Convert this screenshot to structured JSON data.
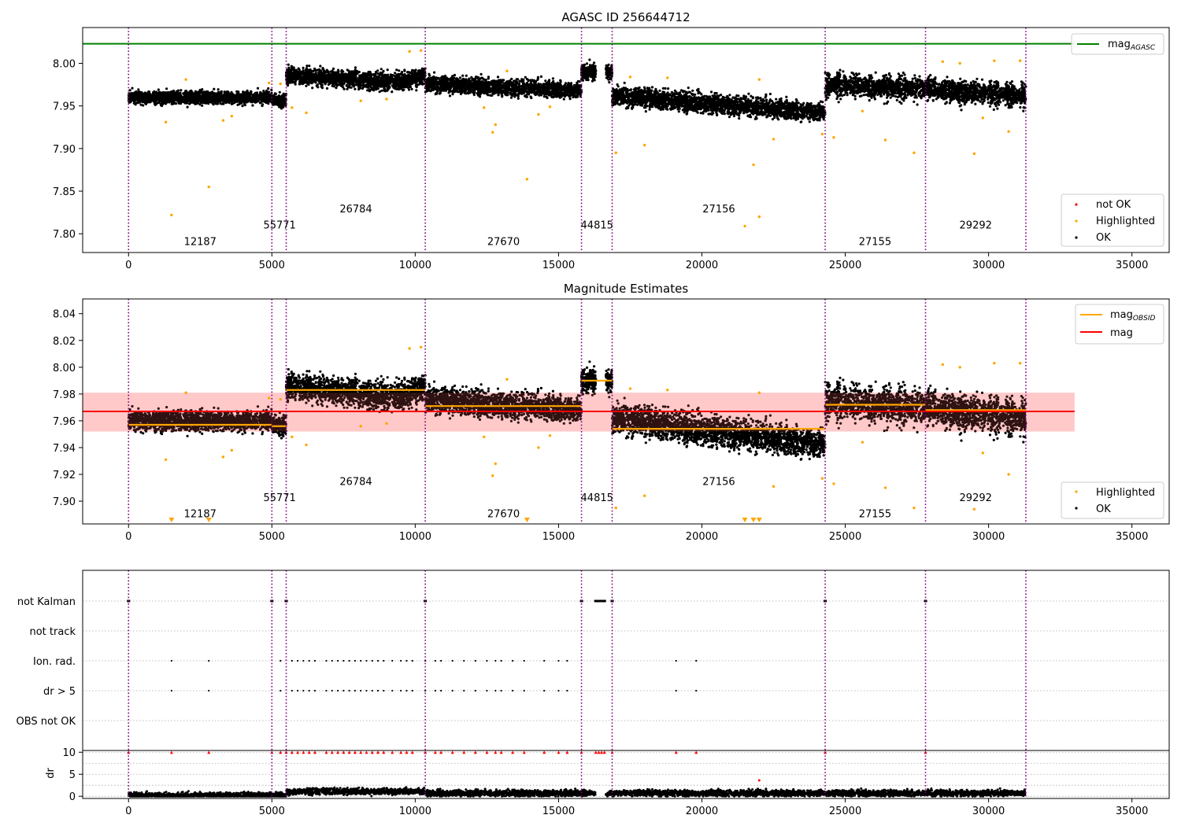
{
  "chart_data": [
    {
      "type": "scatter",
      "title": "AGASC ID 256644712",
      "xlim": [
        -1600,
        36300
      ],
      "ylim": [
        7.778,
        8.042
      ],
      "xticks": [
        0,
        5000,
        10000,
        15000,
        20000,
        25000,
        30000,
        35000
      ],
      "yticks": [
        7.8,
        7.85,
        7.9,
        7.95,
        8.0
      ],
      "vlines": [
        0,
        5000,
        5500,
        10350,
        15800,
        16870,
        24300,
        27800,
        31300
      ],
      "mag_agasc": 8.023,
      "mag_agasc_x_end": 33000,
      "segments": [
        {
          "x0": 0,
          "x1": 5000,
          "y0": 7.96,
          "y1": 7.96,
          "w": 0.0065,
          "gap": [],
          "burst": [],
          "type": "seg"
        },
        {
          "x0": 5000,
          "x1": 5500,
          "y0": 7.957,
          "y1": 7.957,
          "w": 0.0065,
          "gap": [],
          "burst": [],
          "type": "seg"
        },
        {
          "x0": 5500,
          "x1": 10350,
          "y0": 7.986,
          "y1": 7.976,
          "w": 0.009,
          "gap": [],
          "burst": [
            [
              9400,
              10350,
              0.02
            ]
          ],
          "type": "seg"
        },
        {
          "x0": 10350,
          "x1": 15800,
          "y0": 7.976,
          "y1": 7.968,
          "w": 0.0085,
          "gap": [],
          "burst": [],
          "type": "seg"
        },
        {
          "x0": 15800,
          "x1": 16870,
          "y0": 7.99,
          "y1": 7.99,
          "w": 0.009,
          "gap": [
            [
              16300,
              16650
            ]
          ],
          "burst": [],
          "type": "seg"
        },
        {
          "x0": 16870,
          "x1": 24300,
          "y0": 7.962,
          "y1": 7.942,
          "w": 0.01,
          "gap": [],
          "burst": [],
          "type": "seg"
        },
        {
          "x0": 24300,
          "x1": 27800,
          "y0": 7.975,
          "y1": 7.97,
          "w": 0.011,
          "gap": [],
          "burst": [],
          "type": "osc"
        },
        {
          "x0": 27800,
          "x1": 31300,
          "y0": 7.97,
          "y1": 7.962,
          "w": 0.011,
          "gap": [],
          "burst": [],
          "type": "osc"
        }
      ],
      "highlighted": [
        [
          1300,
          7.931
        ],
        [
          1500,
          7.822
        ],
        [
          2000,
          7.981
        ],
        [
          2800,
          7.855
        ],
        [
          3300,
          7.933
        ],
        [
          3600,
          7.938
        ],
        [
          4900,
          7.977
        ],
        [
          5300,
          7.976
        ],
        [
          5700,
          7.948
        ],
        [
          6200,
          7.942
        ],
        [
          8100,
          7.956
        ],
        [
          9000,
          7.958
        ],
        [
          9800,
          8.014
        ],
        [
          10200,
          8.015
        ],
        [
          12400,
          7.948
        ],
        [
          12700,
          7.919
        ],
        [
          12800,
          7.928
        ],
        [
          13200,
          7.991
        ],
        [
          13900,
          7.864
        ],
        [
          14300,
          7.94
        ],
        [
          14700,
          7.949
        ],
        [
          17000,
          7.895
        ],
        [
          17500,
          7.984
        ],
        [
          18000,
          7.904
        ],
        [
          18800,
          7.983
        ],
        [
          21500,
          7.809
        ],
        [
          21800,
          7.881
        ],
        [
          22000,
          7.82
        ],
        [
          22000,
          7.981
        ],
        [
          22500,
          7.911
        ],
        [
          24200,
          7.917
        ],
        [
          24600,
          7.913
        ],
        [
          25600,
          7.944
        ],
        [
          26400,
          7.91
        ],
        [
          27400,
          7.895
        ],
        [
          28400,
          8.002
        ],
        [
          29000,
          8.0
        ],
        [
          29500,
          7.894
        ],
        [
          29800,
          7.936
        ],
        [
          30200,
          8.003
        ],
        [
          30700,
          7.92
        ],
        [
          31100,
          8.003
        ]
      ],
      "obsid_labels": [
        {
          "x": 2500,
          "y": 7.787,
          "text": "12187"
        },
        {
          "x": 5270,
          "y": 7.806,
          "text": "55771"
        },
        {
          "x": 7930,
          "y": 7.825,
          "text": "26784"
        },
        {
          "x": 13080,
          "y": 7.787,
          "text": "27670"
        },
        {
          "x": 16340,
          "y": 7.806,
          "text": "44815"
        },
        {
          "x": 20590,
          "y": 7.825,
          "text": "27156"
        },
        {
          "x": 26040,
          "y": 7.787,
          "text": "27155"
        },
        {
          "x": 29550,
          "y": 7.806,
          "text": "29292"
        }
      ],
      "legend_top": {
        "label": "mag",
        "sub": "AGASC"
      },
      "legend_bottom": [
        "not OK",
        "Highlighted",
        "OK"
      ]
    },
    {
      "type": "scatter",
      "title": "Magnitude Estimates",
      "xlim": [
        -1600,
        36300
      ],
      "ylim": [
        7.883,
        8.051
      ],
      "xticks": [
        0,
        5000,
        10000,
        15000,
        20000,
        25000,
        30000,
        35000
      ],
      "yticks": [
        7.9,
        7.92,
        7.94,
        7.96,
        7.98,
        8.0,
        8.02,
        8.04
      ],
      "mag": 7.967,
      "mag_band": [
        7.952,
        7.981
      ],
      "mag_x_end": 33000,
      "obsid_mags": [
        {
          "x0": 0,
          "x1": 5000,
          "y": 7.957
        },
        {
          "x0": 5000,
          "x1": 5500,
          "y": 7.956
        },
        {
          "x0": 5500,
          "x1": 10350,
          "y": 7.983
        },
        {
          "x0": 10350,
          "x1": 15800,
          "y": 7.971
        },
        {
          "x0": 15800,
          "x1": 16870,
          "y": 7.99
        },
        {
          "x0": 16870,
          "x1": 24300,
          "y": 7.954
        },
        {
          "x0": 24300,
          "x1": 27800,
          "y": 7.972
        },
        {
          "x0": 27800,
          "x1": 31300,
          "y": 7.968
        }
      ],
      "below_markers": [
        1500,
        2800,
        13900,
        21500,
        21800,
        22000
      ],
      "obsid_labels": [
        {
          "x": 2500,
          "y": 7.888,
          "text": "12187"
        },
        {
          "x": 5270,
          "y": 7.9,
          "text": "55771"
        },
        {
          "x": 7930,
          "y": 7.912,
          "text": "26784"
        },
        {
          "x": 13080,
          "y": 7.888,
          "text": "27670"
        },
        {
          "x": 16340,
          "y": 7.9,
          "text": "44815"
        },
        {
          "x": 20590,
          "y": 7.912,
          "text": "27156"
        },
        {
          "x": 26040,
          "y": 7.888,
          "text": "27155"
        },
        {
          "x": 29550,
          "y": 7.9,
          "text": "29292"
        }
      ],
      "legend_top": [
        {
          "label": "mag",
          "sub": "OBSID"
        },
        {
          "label": "mag",
          "sub": ""
        }
      ],
      "legend_bottom": [
        "Highlighted",
        "OK"
      ]
    },
    {
      "type": "scatter",
      "title": "",
      "xlim": [
        -1600,
        36300
      ],
      "flag_labels": [
        "not Kalman",
        "not track",
        "Ion. rad.",
        "dr > 5",
        "OBS not OK"
      ],
      "not_kalman_x": [
        0,
        5000,
        5500,
        10350,
        15800,
        16300,
        16400,
        16500,
        16600,
        16870,
        24300,
        27800
      ],
      "ion_rad_x": [
        1500,
        2800,
        5300,
        5700,
        5900,
        6100,
        6300,
        6500,
        6900,
        7100,
        7300,
        7500,
        7700,
        7900,
        8100,
        8300,
        8500,
        8700,
        8900,
        9200,
        9500,
        9700,
        9900,
        10350,
        10700,
        10900,
        11300,
        11700,
        12100,
        12500,
        12800,
        13000,
        13400,
        13800,
        14500,
        15000,
        15300,
        19100,
        19800
      ],
      "dr_ylim": [
        -0.5,
        10.4
      ],
      "dr_yticks": [
        0,
        5,
        10
      ],
      "ylabel": "dr",
      "dr_high_x": [
        0,
        5000,
        5500,
        10350,
        15800,
        16300,
        16400,
        16500,
        16600,
        16870,
        24300,
        27800,
        1500,
        2800,
        5300,
        5700,
        5900,
        6100,
        6300,
        6500,
        6900,
        7100,
        7300,
        7500,
        7700,
        7900,
        8100,
        8300,
        8500,
        8700,
        8900,
        9200,
        9500,
        9700,
        9900,
        10700,
        10900,
        11300,
        11700,
        12100,
        12500,
        12800,
        13000,
        13400,
        13800,
        14500,
        15000,
        15300,
        19100,
        19800
      ],
      "dr_outlier": [
        22000,
        3.6
      ],
      "xticks": [
        0,
        5000,
        10000,
        15000,
        20000,
        25000,
        30000,
        35000
      ]
    }
  ],
  "colors": {
    "ok": "#000000",
    "highlighted": "#ffa500",
    "not_ok": "#ff0000",
    "agasc_line": "#008000",
    "mag_line": "#ff0000",
    "obsid_line": "#ffa500",
    "vline": "#800080",
    "band": "#ffdddd"
  }
}
